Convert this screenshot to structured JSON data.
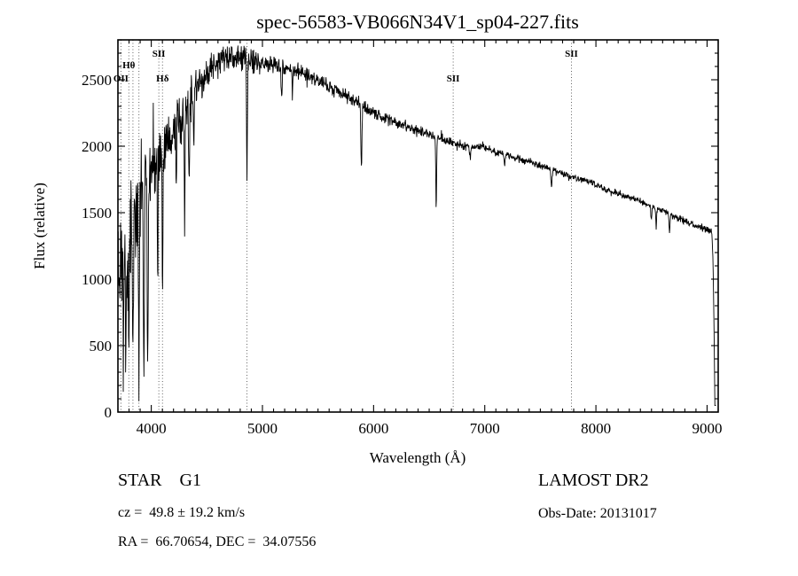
{
  "chart_data": {
    "type": "line",
    "title": "spec-56583-VB066N34V1_sp04-227.fits",
    "xlabel": "Wavelength (Å)",
    "ylabel": "Flux (relative)",
    "xlim": [
      3700,
      9100
    ],
    "ylim": [
      0,
      2800
    ],
    "x_ticks": [
      4000,
      5000,
      6000,
      7000,
      8000,
      9000
    ],
    "y_ticks": [
      0,
      500,
      1000,
      1500,
      2000,
      2500
    ],
    "grid": false,
    "line_color": "#000000",
    "marker_line_style": "dotted",
    "line_markers": [
      {
        "wavelength": 3727,
        "label": "OII",
        "row": 2
      },
      {
        "wavelength": 3798,
        "label": "Hθ",
        "row": 1
      },
      {
        "wavelength": 3835,
        "label": "",
        "row": 1
      },
      {
        "wavelength": 3889,
        "label": "",
        "row": 1
      },
      {
        "wavelength": 4068,
        "label": "SII",
        "row": 0
      },
      {
        "wavelength": 4101,
        "label": "Hδ",
        "row": 2
      },
      {
        "wavelength": 4861,
        "label": "",
        "row": 0
      },
      {
        "wavelength": 6716,
        "label": "SII",
        "row": 2
      },
      {
        "wavelength": 7780,
        "label": "SII",
        "row": 0
      }
    ],
    "continuum": [
      [
        3700,
        1000
      ],
      [
        3750,
        1150
      ],
      [
        3800,
        1300
      ],
      [
        3850,
        1480
      ],
      [
        3900,
        1650
      ],
      [
        3950,
        1760
      ],
      [
        4000,
        1850
      ],
      [
        4050,
        1900
      ],
      [
        4100,
        1950
      ],
      [
        4150,
        2020
      ],
      [
        4200,
        2150
      ],
      [
        4300,
        2250
      ],
      [
        4350,
        2350
      ],
      [
        4400,
        2420
      ],
      [
        4450,
        2490
      ],
      [
        4500,
        2550
      ],
      [
        4550,
        2600
      ],
      [
        4600,
        2640
      ],
      [
        4700,
        2670
      ],
      [
        4800,
        2660
      ],
      [
        4900,
        2645
      ],
      [
        5000,
        2625
      ],
      [
        5100,
        2610
      ],
      [
        5200,
        2595
      ],
      [
        5300,
        2570
      ],
      [
        5400,
        2535
      ],
      [
        5500,
        2490
      ],
      [
        5600,
        2445
      ],
      [
        5700,
        2400
      ],
      [
        5800,
        2360
      ],
      [
        5900,
        2310
      ],
      [
        6000,
        2255
      ],
      [
        6100,
        2215
      ],
      [
        6200,
        2180
      ],
      [
        6300,
        2150
      ],
      [
        6400,
        2120
      ],
      [
        6500,
        2090
      ],
      [
        6600,
        2060
      ],
      [
        6700,
        2030
      ],
      [
        6800,
        2010
      ],
      [
        6900,
        2000
      ],
      [
        7000,
        1990
      ],
      [
        7100,
        1960
      ],
      [
        7200,
        1930
      ],
      [
        7300,
        1905
      ],
      [
        7400,
        1880
      ],
      [
        7500,
        1855
      ],
      [
        7600,
        1825
      ],
      [
        7700,
        1795
      ],
      [
        7800,
        1765
      ],
      [
        7900,
        1740
      ],
      [
        8000,
        1715
      ],
      [
        8100,
        1670
      ],
      [
        8200,
        1640
      ],
      [
        8300,
        1615
      ],
      [
        8400,
        1590
      ],
      [
        8500,
        1550
      ],
      [
        8600,
        1515
      ],
      [
        8700,
        1470
      ],
      [
        8800,
        1435
      ],
      [
        8900,
        1400
      ],
      [
        9000,
        1370
      ],
      [
        9080,
        1345
      ]
    ],
    "absorption_lines": [
      {
        "wl": 3750,
        "depth": 700,
        "width": 7
      },
      {
        "wl": 3770,
        "depth": 800,
        "width": 7
      },
      {
        "wl": 3798,
        "depth": 950,
        "width": 8
      },
      {
        "wl": 3835,
        "depth": 1050,
        "width": 8
      },
      {
        "wl": 3889,
        "depth": 1150,
        "width": 9
      },
      {
        "wl": 3933,
        "depth": 1500,
        "width": 11
      },
      {
        "wl": 3968,
        "depth": 1400,
        "width": 11
      },
      {
        "wl": 4058,
        "depth": 1100,
        "width": 6
      },
      {
        "wl": 4101,
        "depth": 850,
        "width": 10
      },
      {
        "wl": 4226,
        "depth": 550,
        "width": 7
      },
      {
        "wl": 4300,
        "depth": 600,
        "width": 11
      },
      {
        "wl": 4340,
        "depth": 650,
        "width": 9
      },
      {
        "wl": 4383,
        "depth": 450,
        "width": 7
      },
      {
        "wl": 4861,
        "depth": 900,
        "width": 9
      },
      {
        "wl": 5172,
        "depth": 280,
        "width": 10
      },
      {
        "wl": 5270,
        "depth": 200,
        "width": 8
      },
      {
        "wl": 5890,
        "depth": 480,
        "width": 11
      },
      {
        "wl": 6563,
        "depth": 520,
        "width": 9
      },
      {
        "wl": 6870,
        "depth": 90,
        "width": 14
      },
      {
        "wl": 7180,
        "depth": 70,
        "width": 14
      },
      {
        "wl": 7600,
        "depth": 110,
        "width": 14
      },
      {
        "wl": 8498,
        "depth": 110,
        "width": 8
      },
      {
        "wl": 8542,
        "depth": 140,
        "width": 9
      },
      {
        "wl": 8662,
        "depth": 140,
        "width": 9
      }
    ],
    "noise_sigma": [
      [
        3700,
        420
      ],
      [
        3800,
        380
      ],
      [
        3900,
        330
      ],
      [
        4000,
        270
      ],
      [
        4100,
        230
      ],
      [
        4200,
        200
      ],
      [
        4300,
        170
      ],
      [
        4400,
        140
      ],
      [
        4500,
        115
      ],
      [
        4700,
        95
      ],
      [
        5000,
        75
      ],
      [
        5300,
        60
      ],
      [
        5600,
        50
      ],
      [
        6000,
        40
      ],
      [
        6500,
        33
      ],
      [
        7000,
        27
      ],
      [
        7500,
        23
      ],
      [
        8000,
        21
      ],
      [
        8500,
        22
      ],
      [
        9000,
        26
      ]
    ],
    "cutoff": {
      "start": 9040,
      "end": 9070,
      "floor": 50
    }
  },
  "annotations": {
    "class_label": "STAR    G1",
    "survey": "LAMOST DR2",
    "cz": "cz =  49.8 ± 19.2 km/s",
    "obs_date": "Obs-Date: 20131017",
    "radec": "RA =  66.70654, DEC =  34.07556"
  }
}
